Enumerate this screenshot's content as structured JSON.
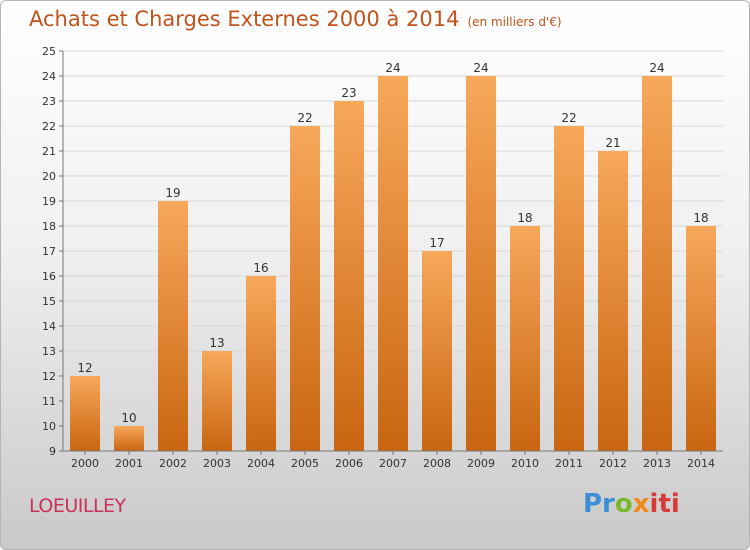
{
  "header": {
    "title": "Achats et Charges Externes 2000 à 2014",
    "subtitle": "(en milliers d'€)"
  },
  "footer": {
    "commune": "LOEUILLEY",
    "logo_parts": [
      "Pr",
      "o",
      "x",
      "iti"
    ]
  },
  "colors": {
    "bar_top": "#f7a85a",
    "bar_bottom": "#c96510",
    "title": "#c0541c",
    "commune": "#c8335a"
  },
  "chart_data": {
    "type": "bar",
    "title": "Achats et Charges Externes 2000 à 2014",
    "subtitle": "(en milliers d'€)",
    "categories": [
      "2000",
      "2001",
      "2002",
      "2003",
      "2004",
      "2005",
      "2006",
      "2007",
      "2008",
      "2009",
      "2010",
      "2011",
      "2012",
      "2013",
      "2014"
    ],
    "values": [
      12,
      10,
      19,
      13,
      16,
      22,
      23,
      24,
      17,
      24,
      18,
      22,
      21,
      24,
      18
    ],
    "yticks": [
      9,
      10,
      11,
      12,
      13,
      14,
      15,
      16,
      17,
      18,
      19,
      20,
      21,
      22,
      23,
      24,
      25
    ],
    "ylim": [
      9,
      25
    ],
    "grid": true,
    "legend": "none"
  }
}
